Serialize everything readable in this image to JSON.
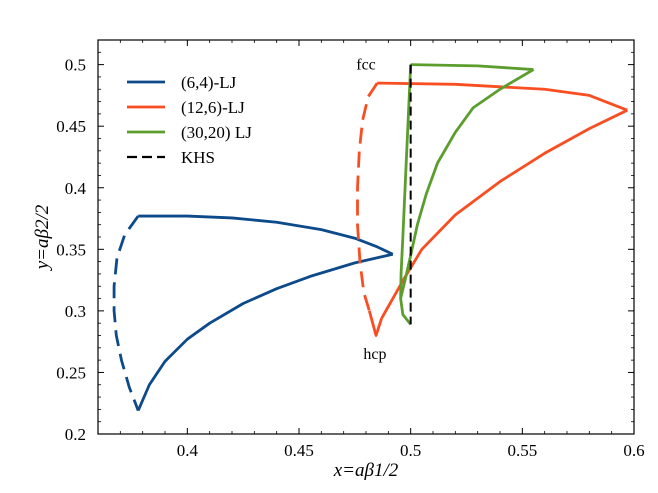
{
  "chart_data": {
    "type": "line",
    "xlabel": "x=aβ1/2",
    "ylabel": "y=aβ2/2",
    "xlim": [
      0.36,
      0.6
    ],
    "ylim": [
      0.2,
      0.52
    ],
    "xticks": [
      "0.4",
      "0.45",
      "0.5",
      "0.55",
      "0.6"
    ],
    "xtick_values": [
      0.4,
      0.45,
      0.5,
      0.55,
      0.6
    ],
    "yticks": [
      "0.2",
      "0.25",
      "0.3",
      "0.35",
      "0.4",
      "0.45",
      "0.5"
    ],
    "ytick_values": [
      0.2,
      0.25,
      0.3,
      0.35,
      0.4,
      0.45,
      0.5
    ],
    "legend_position": "top-left",
    "annotations": [
      {
        "text": "fcc",
        "x": 0.48,
        "y": 0.5
      },
      {
        "text": "hcp",
        "x": 0.484,
        "y": 0.265
      }
    ],
    "series": [
      {
        "name": "(6,4)-LJ",
        "color": "#0c4a8a",
        "segments": [
          {
            "style": "solid",
            "points": [
              [
                0.378,
                0.377
              ],
              [
                0.4,
                0.377
              ],
              [
                0.42,
                0.3755
              ],
              [
                0.44,
                0.372
              ],
              [
                0.46,
                0.366
              ],
              [
                0.475,
                0.359
              ],
              [
                0.485,
                0.352
              ],
              [
                0.492,
                0.346
              ]
            ]
          },
          {
            "style": "solid",
            "points": [
              [
                0.492,
                0.346
              ],
              [
                0.475,
                0.339
              ],
              [
                0.455,
                0.328
              ],
              [
                0.44,
                0.318
              ],
              [
                0.425,
                0.306
              ],
              [
                0.41,
                0.29
              ],
              [
                0.4,
                0.277
              ],
              [
                0.39,
                0.259
              ],
              [
                0.383,
                0.24
              ],
              [
                0.378,
                0.219
              ]
            ]
          },
          {
            "style": "dashed",
            "points": [
              [
                0.378,
                0.377
              ],
              [
                0.372,
                0.362
              ],
              [
                0.3685,
                0.343
              ],
              [
                0.3672,
                0.32
              ],
              [
                0.3672,
                0.3
              ],
              [
                0.3682,
                0.28
              ],
              [
                0.3705,
                0.26
              ],
              [
                0.374,
                0.238
              ],
              [
                0.378,
                0.219
              ]
            ]
          }
        ]
      },
      {
        "name": "(12,6)-LJ",
        "color": "#f84e21",
        "segments": [
          {
            "style": "dashed",
            "points": [
              [
                0.485,
                0.485
              ],
              [
                0.481,
                0.474
              ],
              [
                0.4785,
                0.455
              ],
              [
                0.477,
                0.43
              ],
              [
                0.4762,
                0.4
              ],
              [
                0.4762,
                0.37
              ],
              [
                0.4773,
                0.34
              ],
              [
                0.479,
                0.315
              ],
              [
                0.4815,
                0.3
              ]
            ]
          },
          {
            "style": "solid",
            "points": [
              [
                0.4815,
                0.3
              ],
              [
                0.4845,
                0.28
              ],
              [
                0.487,
                0.294
              ]
            ]
          },
          {
            "style": "solid",
            "points": [
              [
                0.485,
                0.485
              ],
              [
                0.52,
                0.484
              ],
              [
                0.56,
                0.48
              ],
              [
                0.58,
                0.475
              ],
              [
                0.597,
                0.463
              ]
            ]
          },
          {
            "style": "solid",
            "points": [
              [
                0.597,
                0.463
              ],
              [
                0.58,
                0.448
              ],
              [
                0.56,
                0.428
              ],
              [
                0.54,
                0.405
              ],
              [
                0.52,
                0.378
              ],
              [
                0.505,
                0.35
              ],
              [
                0.497,
                0.326
              ],
              [
                0.492,
                0.31
              ],
              [
                0.487,
                0.294
              ]
            ]
          }
        ]
      },
      {
        "name": "(30,20) LJ",
        "color": "#5b9e2e",
        "segments": [
          {
            "style": "solid",
            "points": [
              [
                0.5,
                0.5
              ],
              [
                0.53,
                0.499
              ],
              [
                0.555,
                0.496
              ]
            ]
          },
          {
            "style": "solid",
            "points": [
              [
                0.555,
                0.496
              ],
              [
                0.54,
                0.48
              ],
              [
                0.528,
                0.465
              ],
              [
                0.52,
                0.445
              ],
              [
                0.512,
                0.42
              ],
              [
                0.507,
                0.395
              ],
              [
                0.503,
                0.37
              ],
              [
                0.5,
                0.345
              ],
              [
                0.4975,
                0.325
              ],
              [
                0.4955,
                0.31
              ],
              [
                0.4965,
                0.297
              ],
              [
                0.5,
                0.289
              ]
            ]
          },
          {
            "style": "solid",
            "points": [
              [
                0.5,
                0.5
              ],
              [
                0.499,
                0.46
              ],
              [
                0.4975,
                0.4
              ],
              [
                0.4965,
                0.36
              ],
              [
                0.4957,
                0.33
              ],
              [
                0.4955,
                0.31
              ]
            ]
          }
        ]
      },
      {
        "name": "KHS",
        "color": "#000000",
        "segments": [
          {
            "style": "dashed",
            "points": [
              [
                0.5,
                0.5
              ],
              [
                0.5,
                0.289
              ]
            ]
          }
        ]
      }
    ]
  }
}
